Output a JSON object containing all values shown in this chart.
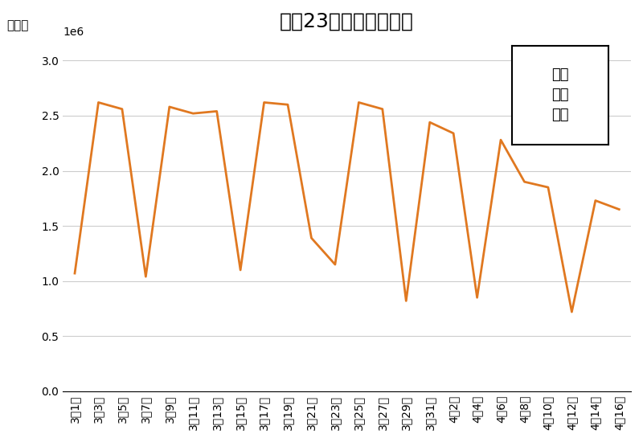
{
  "title": "東京23区への来訪者数",
  "ylabel": "（人）",
  "line_color": "#E07820",
  "line_width": 2.0,
  "background_color": "#ffffff",
  "grid_color": "#cccccc",
  "ylim": [
    0,
    3200000
  ],
  "yticks": [
    0,
    500000,
    1000000,
    1500000,
    2000000,
    2500000,
    3000000
  ],
  "legend_text": "非常\n事態\n宣言",
  "dates": [
    "3月1日",
    "3月3日",
    "3月5日",
    "3月7日",
    "3月9日",
    "3月11日",
    "3月13日",
    "3月15日",
    "3月17日",
    "3月19日",
    "3月21日",
    "3月23日",
    "3月25日",
    "3月27日",
    "3月29日",
    "3月31日",
    "4月2日",
    "4月4日",
    "4月6日",
    "4月8日",
    "4月10日",
    "4月12日",
    "4月14日",
    "4月16日"
  ],
  "values": [
    1070000,
    2620000,
    2560000,
    1040000,
    2580000,
    2520000,
    2540000,
    1100000,
    2620000,
    2600000,
    1390000,
    1150000,
    2620000,
    2560000,
    820000,
    2440000,
    2340000,
    850000,
    2280000,
    1900000,
    1850000,
    720000,
    1730000,
    1650000
  ],
  "title_fontsize": 18,
  "tick_fontsize": 10,
  "ylabel_fontsize": 11
}
